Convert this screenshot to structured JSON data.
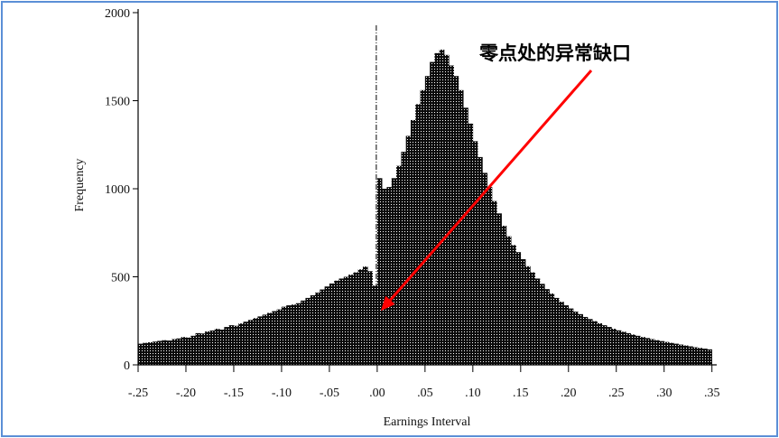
{
  "chart_data": {
    "type": "bar",
    "xlabel": "Earnings Interval",
    "ylabel": "Frequency",
    "xlim": [
      -0.25,
      0.35
    ],
    "ylim": [
      0,
      2000
    ],
    "bin_width": 0.005,
    "xtick_values": [
      -0.25,
      -0.2,
      -0.15,
      -0.1,
      -0.05,
      0.0,
      0.05,
      0.1,
      0.15,
      0.2,
      0.25,
      0.3,
      0.35
    ],
    "xtick_labels": [
      "-.25",
      "-.20",
      "-.15",
      "-.10",
      "-.05",
      ".00",
      ".05",
      ".10",
      ".15",
      ".20",
      ".25",
      ".30",
      ".35"
    ],
    "ytick_values": [
      0,
      500,
      1000,
      1500,
      2000
    ],
    "ytick_labels": [
      "0",
      "500",
      "1000",
      "1500",
      "2000"
    ],
    "bar_color": "#111111",
    "highlight_x": 0.0,
    "bins": [
      [
        -0.25,
        120
      ],
      [
        -0.245,
        125
      ],
      [
        -0.24,
        128
      ],
      [
        -0.235,
        132
      ],
      [
        -0.23,
        136
      ],
      [
        -0.225,
        140
      ],
      [
        -0.22,
        138
      ],
      [
        -0.215,
        146
      ],
      [
        -0.21,
        150
      ],
      [
        -0.205,
        158
      ],
      [
        -0.2,
        155
      ],
      [
        -0.195,
        165
      ],
      [
        -0.19,
        180
      ],
      [
        -0.185,
        178
      ],
      [
        -0.18,
        190
      ],
      [
        -0.175,
        195
      ],
      [
        -0.17,
        205
      ],
      [
        -0.165,
        200
      ],
      [
        -0.16,
        215
      ],
      [
        -0.155,
        225
      ],
      [
        -0.15,
        222
      ],
      [
        -0.145,
        235
      ],
      [
        -0.14,
        245
      ],
      [
        -0.135,
        255
      ],
      [
        -0.13,
        265
      ],
      [
        -0.125,
        275
      ],
      [
        -0.12,
        285
      ],
      [
        -0.115,
        295
      ],
      [
        -0.11,
        305
      ],
      [
        -0.105,
        315
      ],
      [
        -0.1,
        330
      ],
      [
        -0.095,
        338
      ],
      [
        -0.09,
        342
      ],
      [
        -0.085,
        350
      ],
      [
        -0.08,
        365
      ],
      [
        -0.075,
        380
      ],
      [
        -0.07,
        395
      ],
      [
        -0.065,
        410
      ],
      [
        -0.06,
        428
      ],
      [
        -0.055,
        445
      ],
      [
        -0.05,
        462
      ],
      [
        -0.045,
        478
      ],
      [
        -0.04,
        490
      ],
      [
        -0.035,
        500
      ],
      [
        -0.03,
        512
      ],
      [
        -0.025,
        525
      ],
      [
        -0.02,
        542
      ],
      [
        -0.015,
        558
      ],
      [
        -0.01,
        532
      ],
      [
        -0.005,
        450
      ],
      [
        0.0,
        1060
      ],
      [
        0.005,
        1000
      ],
      [
        0.01,
        1010
      ],
      [
        0.015,
        1060
      ],
      [
        0.02,
        1130
      ],
      [
        0.025,
        1210
      ],
      [
        0.03,
        1300
      ],
      [
        0.035,
        1390
      ],
      [
        0.04,
        1480
      ],
      [
        0.045,
        1560
      ],
      [
        0.05,
        1640
      ],
      [
        0.055,
        1720
      ],
      [
        0.06,
        1770
      ],
      [
        0.065,
        1790
      ],
      [
        0.07,
        1760
      ],
      [
        0.075,
        1700
      ],
      [
        0.08,
        1640
      ],
      [
        0.085,
        1560
      ],
      [
        0.09,
        1460
      ],
      [
        0.095,
        1370
      ],
      [
        0.1,
        1270
      ],
      [
        0.105,
        1180
      ],
      [
        0.11,
        1090
      ],
      [
        0.115,
        1010
      ],
      [
        0.12,
        930
      ],
      [
        0.125,
        860
      ],
      [
        0.13,
        790
      ],
      [
        0.135,
        730
      ],
      [
        0.14,
        680
      ],
      [
        0.145,
        640
      ],
      [
        0.15,
        600
      ],
      [
        0.155,
        560
      ],
      [
        0.16,
        525
      ],
      [
        0.165,
        490
      ],
      [
        0.17,
        460
      ],
      [
        0.175,
        430
      ],
      [
        0.18,
        405
      ],
      [
        0.185,
        380
      ],
      [
        0.19,
        358
      ],
      [
        0.195,
        338
      ],
      [
        0.2,
        320
      ],
      [
        0.205,
        302
      ],
      [
        0.21,
        288
      ],
      [
        0.215,
        272
      ],
      [
        0.22,
        260
      ],
      [
        0.225,
        248
      ],
      [
        0.23,
        236
      ],
      [
        0.235,
        225
      ],
      [
        0.24,
        215
      ],
      [
        0.245,
        205
      ],
      [
        0.25,
        196
      ],
      [
        0.255,
        188
      ],
      [
        0.26,
        180
      ],
      [
        0.265,
        172
      ],
      [
        0.27,
        165
      ],
      [
        0.275,
        158
      ],
      [
        0.28,
        152
      ],
      [
        0.285,
        146
      ],
      [
        0.29,
        140
      ],
      [
        0.295,
        135
      ],
      [
        0.3,
        130
      ],
      [
        0.305,
        125
      ],
      [
        0.31,
        120
      ],
      [
        0.315,
        115
      ],
      [
        0.32,
        110
      ],
      [
        0.325,
        105
      ],
      [
        0.33,
        100
      ],
      [
        0.335,
        96
      ],
      [
        0.34,
        92
      ],
      [
        0.345,
        88
      ]
    ]
  },
  "annotation": {
    "text": "零点处的异常缺口",
    "arrow_color": "#ff0000"
  }
}
